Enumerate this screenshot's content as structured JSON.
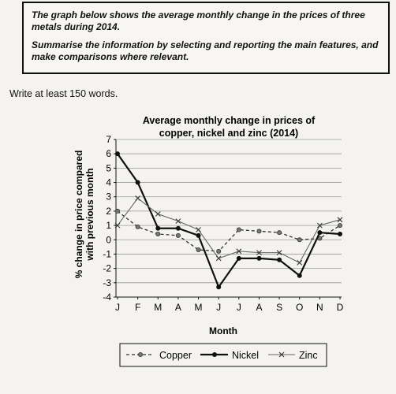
{
  "task": {
    "prompt": "The graph below shows the average monthly change in the prices of three metals during 2014.",
    "instruction": "Summarise the information by selecting and reporting the main features, and make comparisons where relevant."
  },
  "word_requirement": "Write at least 150 words.",
  "chart_data": {
    "type": "line",
    "title_lines": [
      "Average monthly change in prices of",
      "copper, nickel and zinc (2014)"
    ],
    "xlabel": "Month",
    "ylabel_lines": [
      "% change in price compared",
      "with previous month"
    ],
    "categories": [
      "J",
      "F",
      "M",
      "A",
      "M",
      "J",
      "J",
      "A",
      "S",
      "O",
      "N",
      "D"
    ],
    "ylim": [
      -4,
      7
    ],
    "yticks": [
      "7",
      "6",
      "5",
      "4",
      "3",
      "2",
      "1",
      "0",
      "-1",
      "-2",
      "-3",
      "-4"
    ],
    "grid": true,
    "legend_position": "bottom",
    "series": [
      {
        "name": "Copper",
        "style": "dashed",
        "marker": "circle",
        "values": [
          2,
          0.9,
          0.4,
          0.3,
          -0.7,
          -0.8,
          0.7,
          0.6,
          0.5,
          0,
          0.1,
          1
        ]
      },
      {
        "name": "Nickel",
        "style": "solid",
        "marker": "dot",
        "values": [
          6,
          4,
          0.8,
          0.8,
          0.3,
          -3.3,
          -1.3,
          -1.3,
          -1.4,
          -2.5,
          0.5,
          0.4
        ]
      },
      {
        "name": "Zinc",
        "style": "solid-thin",
        "marker": "x",
        "values": [
          1,
          2.9,
          1.8,
          1.3,
          0.7,
          -1.3,
          -0.8,
          -0.9,
          -0.9,
          -1.6,
          1,
          1.4
        ]
      }
    ]
  }
}
